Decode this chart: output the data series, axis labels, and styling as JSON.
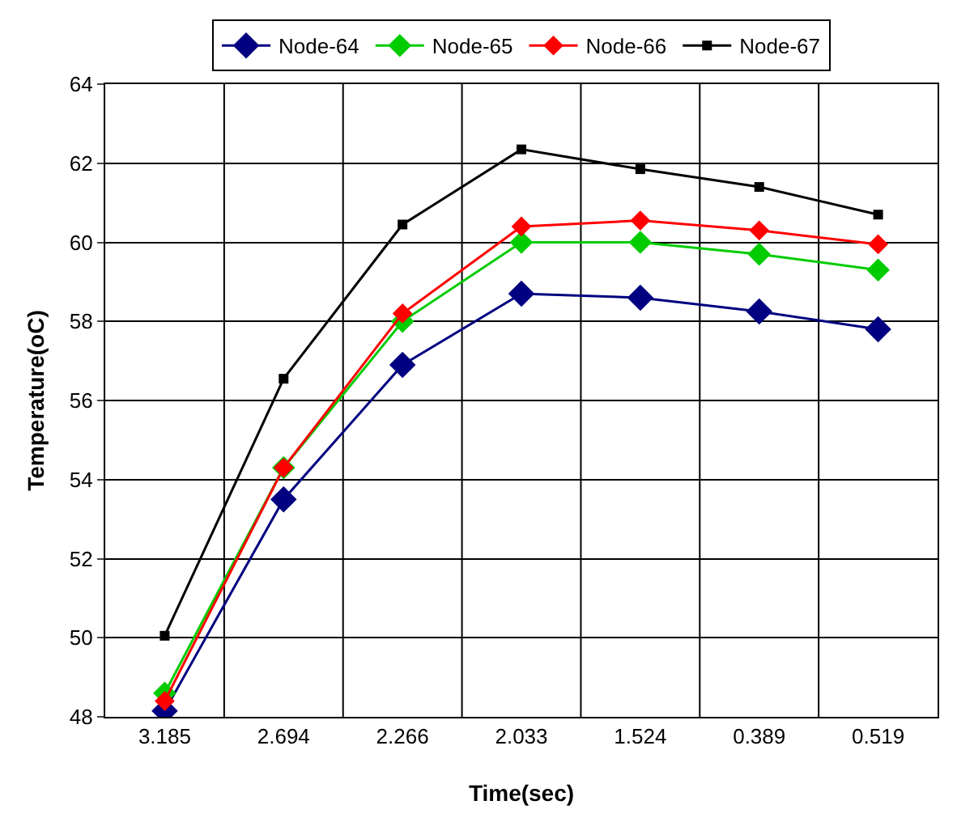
{
  "chart_data": {
    "type": "line",
    "xlabel": "Time(sec)",
    "ylabel": "Temperature(oC)",
    "categories": [
      "3.185",
      "2.694",
      "2.266",
      "2.033",
      "1.524",
      "0.389",
      "0.519"
    ],
    "series": [
      {
        "name": "Node-64",
        "color": "#000080",
        "marker": "diamond",
        "values": [
          48.15,
          53.5,
          56.9,
          58.7,
          58.6,
          58.25,
          57.8
        ]
      },
      {
        "name": "Node-65",
        "color": "#00cc00",
        "marker": "diamond",
        "values": [
          48.6,
          54.3,
          58.0,
          60.0,
          60.0,
          59.7,
          59.3
        ]
      },
      {
        "name": "Node-66",
        "color": "#ff0000",
        "marker": "diamond",
        "values": [
          48.4,
          54.3,
          58.2,
          60.4,
          60.55,
          60.3,
          59.95
        ]
      },
      {
        "name": "Node-67",
        "color": "#000000",
        "marker": "square",
        "values": [
          50.05,
          56.55,
          60.45,
          62.35,
          61.85,
          61.4,
          60.7
        ]
      }
    ],
    "ylim": [
      48,
      64
    ],
    "yticks": [
      48,
      50,
      52,
      54,
      56,
      58,
      60,
      62,
      64
    ],
    "grid": true,
    "legend": "top",
    "line_style": "solid"
  }
}
